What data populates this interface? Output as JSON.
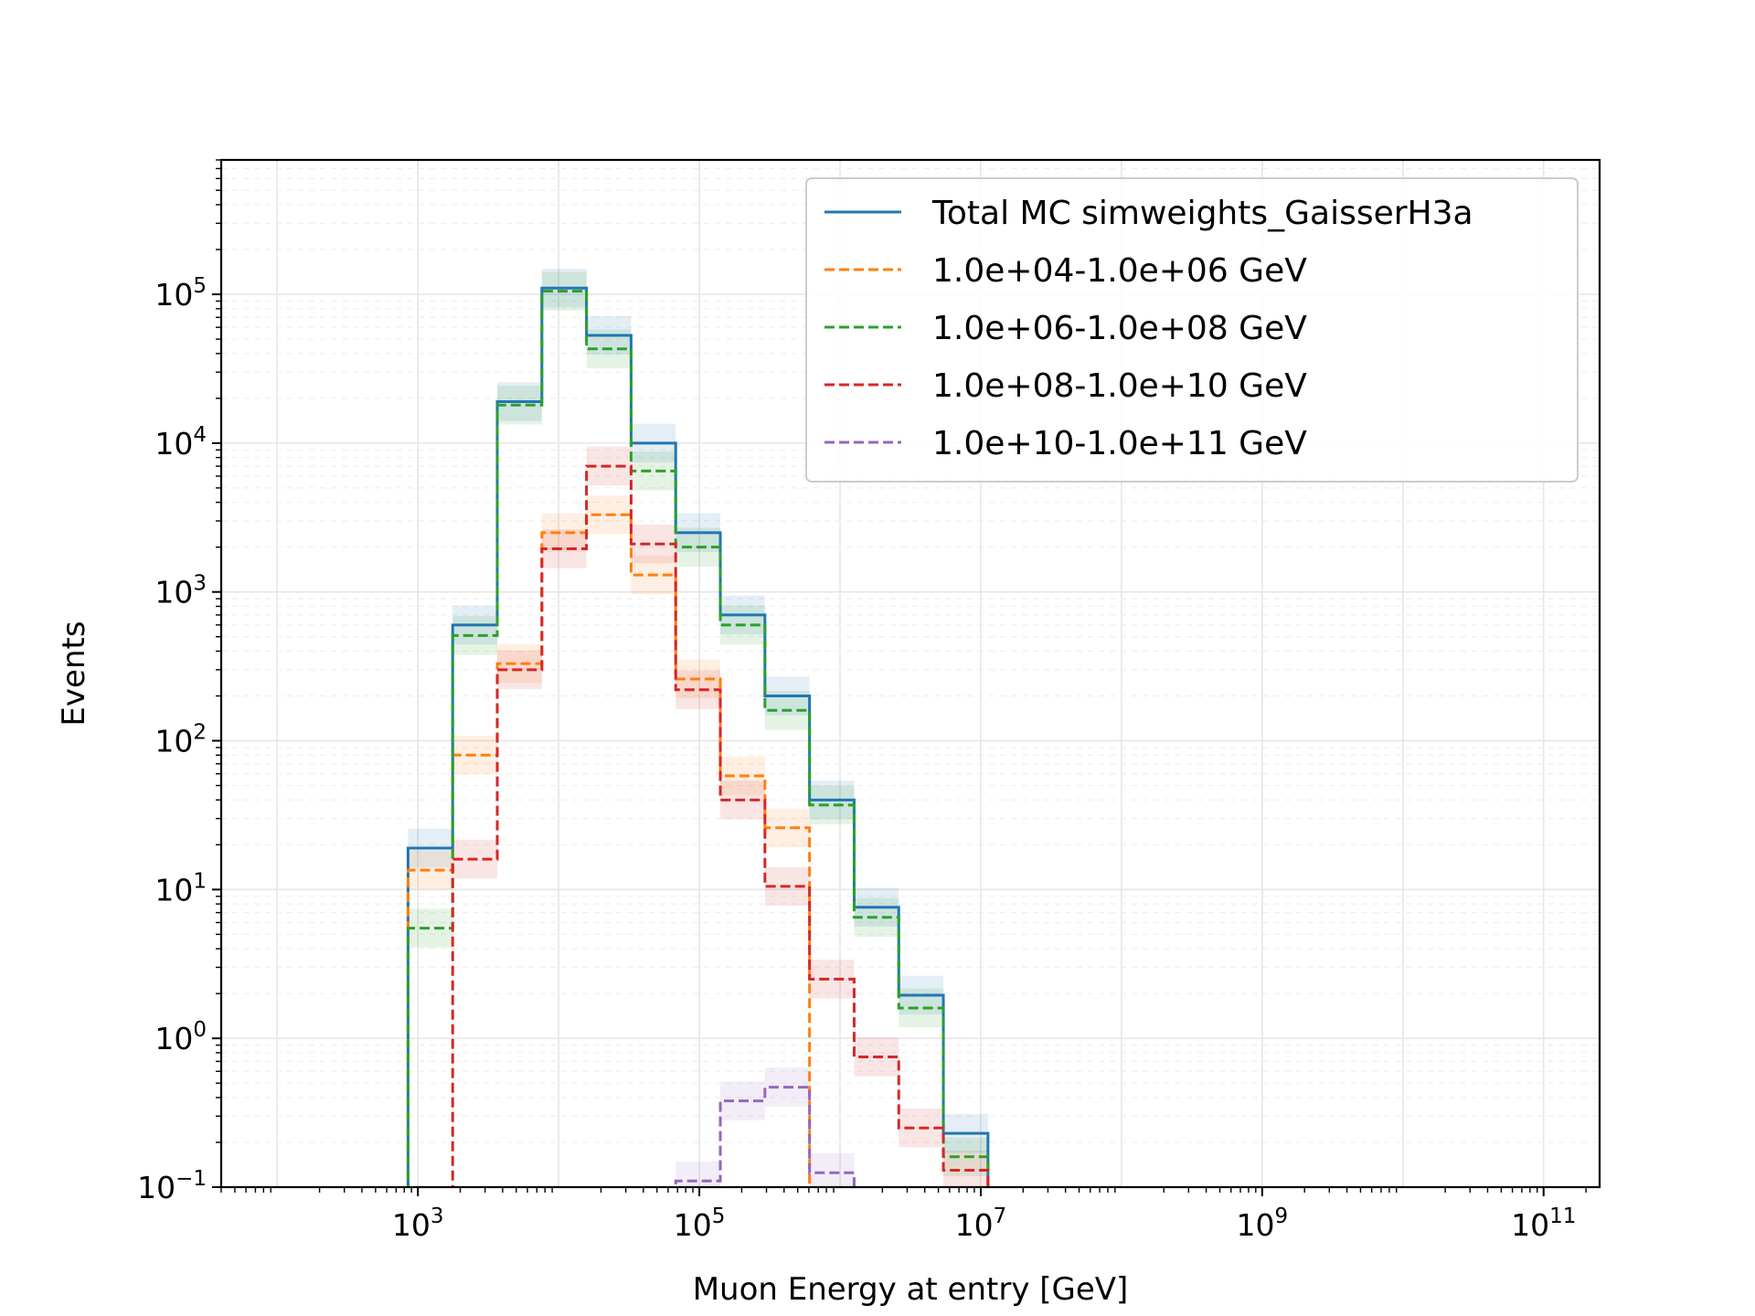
{
  "chart_data": {
    "type": "step-histogram",
    "xlabel": "Muon Energy at entry [GeV]",
    "ylabel": "Events",
    "xscale": "log",
    "yscale": "log",
    "xlim": [
      40,
      250000000000
    ],
    "ylim": [
      0.1,
      800000
    ],
    "x_ticks": [
      {
        "value": 1000,
        "base": "10",
        "exp": "3"
      },
      {
        "value": 100000,
        "base": "10",
        "exp": "5"
      },
      {
        "value": 10000000,
        "base": "10",
        "exp": "7"
      },
      {
        "value": 1000000000,
        "base": "10",
        "exp": "9"
      },
      {
        "value": 100000000000,
        "base": "10",
        "exp": "11"
      }
    ],
    "y_ticks": [
      {
        "value": 0.1,
        "base": "10",
        "exp": "−1"
      },
      {
        "value": 1,
        "base": "10",
        "exp": "0"
      },
      {
        "value": 10,
        "base": "10",
        "exp": "1"
      },
      {
        "value": 100,
        "base": "10",
        "exp": "2"
      },
      {
        "value": 1000,
        "base": "10",
        "exp": "3"
      },
      {
        "value": 10000,
        "base": "10",
        "exp": "4"
      },
      {
        "value": 100000,
        "base": "10",
        "exp": "5"
      }
    ],
    "grid": true,
    "legend_position": "upper right",
    "bin_edges": [
      851,
      1766,
      3664,
      7603,
      15777,
      32738,
      67932,
      140961,
      292500,
      606950,
      1259450,
      2613400,
      5423000,
      11253000
    ],
    "series": [
      {
        "name": "Total MC simweights_GaisserH3a",
        "color": "#1f77b4",
        "dash": "solid",
        "values": [
          19,
          600,
          19000,
          110000,
          53000,
          10000,
          2500,
          700,
          200,
          40,
          7.6,
          1.95,
          0.23
        ]
      },
      {
        "name": "1.0e+04-1.0e+06 GeV",
        "color": "#ff7f0e",
        "dash": "dashed",
        "values": [
          13.5,
          80,
          330,
          2500,
          3300,
          1300,
          260,
          58,
          26,
          null,
          null,
          null,
          null
        ]
      },
      {
        "name": "1.0e+06-1.0e+08 GeV",
        "color": "#2ca02c",
        "dash": "dashed",
        "values": [
          5.5,
          510,
          18000,
          105000,
          43000,
          6500,
          2000,
          600,
          160,
          37,
          6.5,
          1.6,
          0.16
        ]
      },
      {
        "name": "1.0e+08-1.0e+10 GeV",
        "color": "#d62728",
        "dash": "dashed",
        "values": [
          null,
          16,
          300,
          1950,
          7000,
          2100,
          220,
          40,
          10.5,
          2.5,
          0.75,
          0.25,
          0.13
        ]
      },
      {
        "name": "1.0e+10-1.0e+11 GeV",
        "color": "#9467bd",
        "dash": "dashed",
        "values": [
          null,
          null,
          null,
          null,
          null,
          null,
          0.11,
          0.38,
          0.47,
          0.125,
          null,
          null,
          null
        ]
      }
    ]
  }
}
